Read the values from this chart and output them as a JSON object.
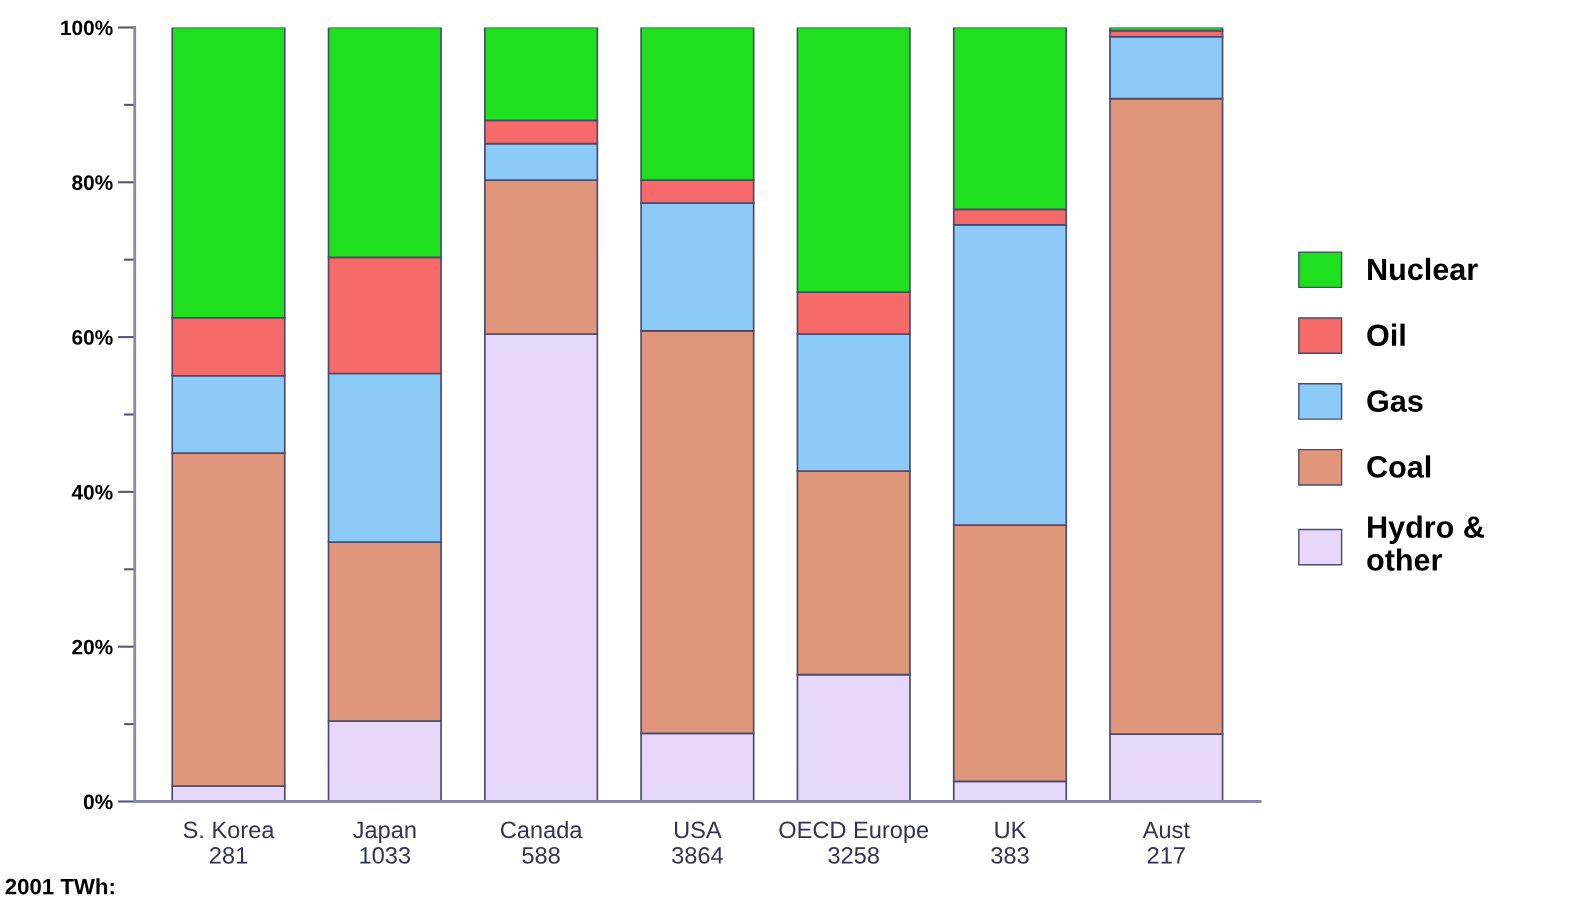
{
  "chart_data": {
    "type": "bar",
    "stacked": true,
    "categories": [
      "S. Korea\n281",
      "Japan\n1033",
      "Canada\n588",
      "USA\n3864",
      "OECD Europe\n3258",
      "UK\n383",
      "Aust\n217"
    ],
    "series": [
      {
        "name": "Hydro &\nother",
        "color": "#e6d8fa",
        "values": [
          2,
          10.4,
          60.4,
          8.8,
          16.4,
          2.6,
          8.7
        ]
      },
      {
        "name": "Coal",
        "color": "#e0967a",
        "values": [
          43,
          23.1,
          19.9,
          52,
          26.3,
          33.1,
          82.1
        ]
      },
      {
        "name": "Gas",
        "color": "#8ccbf7",
        "values": [
          10,
          21.8,
          4.7,
          16.5,
          17.7,
          38.8,
          8
        ]
      },
      {
        "name": "Oil",
        "color": "#f76a6a",
        "values": [
          7.5,
          15,
          3,
          3,
          5.4,
          2,
          0.8
        ]
      },
      {
        "name": "Nuclear",
        "color": "#1ee01e",
        "values": [
          37.5,
          29.7,
          12,
          19.7,
          34.2,
          23.5,
          0.4
        ]
      }
    ],
    "ylim": [
      0,
      100
    ],
    "yticks": [
      {
        "value": 0,
        "label": "0%"
      },
      {
        "value": 10,
        "label": null
      },
      {
        "value": 20,
        "label": "20%"
      },
      {
        "value": 30,
        "label": null
      },
      {
        "value": 40,
        "label": "40%"
      },
      {
        "value": 50,
        "label": null
      },
      {
        "value": 60,
        "label": "60%"
      },
      {
        "value": 70,
        "label": null
      },
      {
        "value": 80,
        "label": "80%"
      },
      {
        "value": 90,
        "label": null
      },
      {
        "value": 100,
        "label": "100%"
      }
    ],
    "annotations": [
      "2001 TWh:"
    ],
    "legend": "right",
    "grid": false
  }
}
